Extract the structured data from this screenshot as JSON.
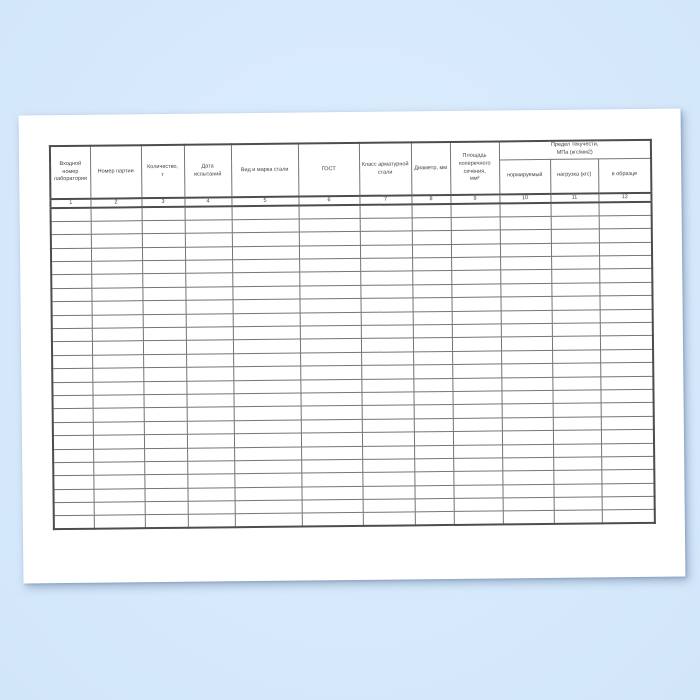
{
  "colors": {
    "background": "#d7eafc",
    "page": "#ffffff",
    "grid_line": "#757575",
    "heavy_line": "#4d4d4d",
    "text": "#3f3f3f"
  },
  "table": {
    "group_header": "Предел текучести,\nМПа (кгс/мм2)",
    "columns": [
      {
        "num": "1",
        "label": "Входной\nномер\nлаборатории"
      },
      {
        "num": "2",
        "label": "Номер партии"
      },
      {
        "num": "3",
        "label": "Количество,\nт"
      },
      {
        "num": "4",
        "label": "Дата\nиспытаний"
      },
      {
        "num": "5",
        "label": "Вид и марка стали"
      },
      {
        "num": "6",
        "label": "ГОСТ"
      },
      {
        "num": "7",
        "label": "Класс арматурной\nстали"
      },
      {
        "num": "8",
        "label": "Диаметр, мм"
      },
      {
        "num": "9",
        "label": "Площадь\nпоперечного\nсечения,\nмм²"
      },
      {
        "num": "10",
        "label": "нормируемый"
      },
      {
        "num": "11",
        "label": "нагрузка (кгс)"
      },
      {
        "num": "12",
        "label": "в образце"
      }
    ],
    "empty_row_count": 24,
    "empty_cell_value": ""
  }
}
